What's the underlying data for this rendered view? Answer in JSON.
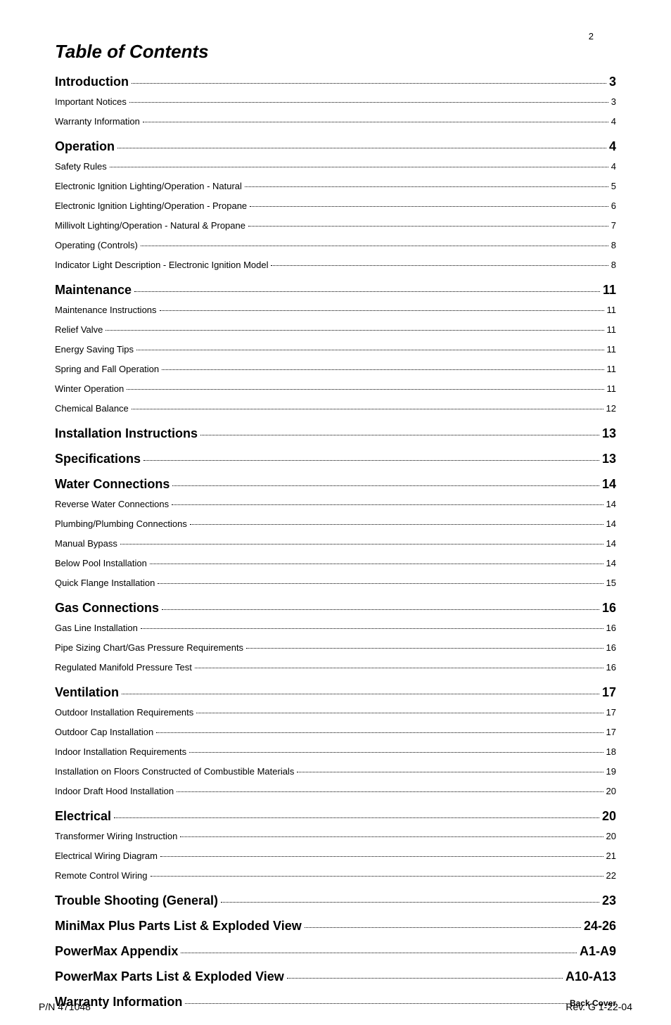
{
  "page_number": "2",
  "title": "Table of Contents",
  "footer": {
    "left": "P/N 471048",
    "right": "Rev. G  1-22-04"
  },
  "entries": [
    {
      "label": "Introduction",
      "page": "3",
      "level": 0
    },
    {
      "label": "Important Notices",
      "page": "3",
      "level": 1
    },
    {
      "label": "Warranty Information",
      "page": "4",
      "level": 1
    },
    {
      "label": "Operation",
      "page": "4",
      "level": 0
    },
    {
      "label": "Safety Rules",
      "page": "4",
      "level": 1
    },
    {
      "label": "Electronic Ignition Lighting/Operation - Natural",
      "page": "5",
      "level": 1
    },
    {
      "label": "Electronic Ignition Lighting/Operation - Propane",
      "page": "6",
      "level": 1
    },
    {
      "label": "Millivolt Lighting/Operation - Natural & Propane",
      "page": "7",
      "level": 1
    },
    {
      "label": "Operating (Controls)",
      "page": "8",
      "level": 1
    },
    {
      "label": "Indicator Light Description - Electronic Ignition Model",
      "page": "8",
      "level": 1
    },
    {
      "label": "Maintenance",
      "page": "11",
      "level": 0
    },
    {
      "label": "Maintenance Instructions",
      "page": "11",
      "level": 1
    },
    {
      "label": "Relief Valve",
      "page": "11",
      "level": 1
    },
    {
      "label": "Energy Saving Tips",
      "page": "11",
      "level": 1
    },
    {
      "label": "Spring and Fall Operation",
      "page": "11",
      "level": 1
    },
    {
      "label": "Winter Operation",
      "page": "11",
      "level": 1
    },
    {
      "label": "Chemical Balance",
      "page": "12",
      "level": 1
    },
    {
      "label": "Installation Instructions",
      "page": "13",
      "level": 0
    },
    {
      "label": "Specifications",
      "page": "13",
      "level": 0
    },
    {
      "label": "Water Connections",
      "page": "14",
      "level": 0
    },
    {
      "label": "Reverse Water Connections",
      "page": "14",
      "level": 1
    },
    {
      "label": "Plumbing/Plumbing Connections",
      "page": "14",
      "level": 1
    },
    {
      "label": "Manual Bypass",
      "page": "14",
      "level": 1
    },
    {
      "label": "Below Pool Installation",
      "page": "14",
      "level": 1
    },
    {
      "label": "Quick Flange Installation",
      "page": "15",
      "level": 1
    },
    {
      "label": "Gas Connections",
      "page": "16",
      "level": 0
    },
    {
      "label": "Gas Line Installation",
      "page": "16",
      "level": 1
    },
    {
      "label": "Pipe Sizing Chart/Gas Pressure Requirements",
      "page": "16",
      "level": 1
    },
    {
      "label": "Regulated Manifold Pressure Test",
      "page": "16",
      "level": 1
    },
    {
      "label": "Ventilation",
      "page": "17",
      "level": 0
    },
    {
      "label": "Outdoor Installation Requirements",
      "page": "17",
      "level": 1
    },
    {
      "label": "Outdoor Cap Installation",
      "page": "17",
      "level": 1
    },
    {
      "label": "Indoor Installation Requirements",
      "page": "18",
      "level": 1
    },
    {
      "label": "Installation on Floors Constructed of Combustible Materials",
      "page": "19",
      "level": 1
    },
    {
      "label": "Indoor Draft Hood Installation",
      "page": "20",
      "level": 1
    },
    {
      "label": "Electrical",
      "page": "20",
      "level": 0
    },
    {
      "label": "Transformer Wiring Instruction",
      "page": "20",
      "level": 1
    },
    {
      "label": "Electrical Wiring Diagram",
      "page": "21",
      "level": 1
    },
    {
      "label": "Remote Control Wiring",
      "page": "22",
      "level": 1
    },
    {
      "label": "Trouble Shooting (General)",
      "page": "23",
      "level": 0
    },
    {
      "label": "MiniMax Plus Parts List & Exploded View",
      "page": "24-26",
      "level": 0
    },
    {
      "label": "PowerMax Appendix",
      "page": "A1-A9",
      "level": 0
    },
    {
      "label": "PowerMax Parts List & Exploded View",
      "page": "A10-A13",
      "level": 0
    },
    {
      "label": "Warranty Information",
      "page": "Back Cover",
      "level": 0,
      "page_style": "small"
    }
  ],
  "visual": {
    "fonts": {
      "family": "Arial",
      "title_pt": 26,
      "section_pt": 18,
      "sub_pt": 13,
      "pagenum_pt": 13,
      "footer_pt": 14
    },
    "colors": {
      "text": "#000000",
      "background": "#ffffff"
    }
  }
}
